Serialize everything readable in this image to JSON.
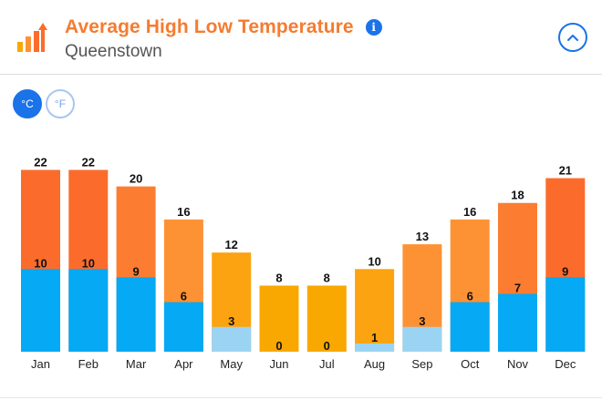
{
  "header": {
    "title": "Average High Low Temperature",
    "subtitle": "Queenstown",
    "info_icon": "info-icon",
    "collapse_icon": "chevron-up-icon",
    "logo_icon": "bar-chart-arrow-icon"
  },
  "units": {
    "celsius_label": "°C",
    "fahrenheit_label": "°F",
    "selected": "°C"
  },
  "colors": {
    "accent": "#1a73e8",
    "title": "#f47c30",
    "low_blue": "#05a9f4",
    "low_light_blue": "#9ad4f2",
    "high_scale": [
      "#f8a800",
      "#fca311",
      "#fd9235",
      "#fc7d32",
      "#fb6c2c"
    ]
  },
  "chart_data": {
    "type": "bar",
    "categories": [
      "Jan",
      "Feb",
      "Mar",
      "Apr",
      "May",
      "Jun",
      "Jul",
      "Aug",
      "Sep",
      "Oct",
      "Nov",
      "Dec"
    ],
    "series": [
      {
        "name": "",
        "values": [
          22,
          22,
          20,
          16,
          12,
          8,
          8,
          10,
          13,
          16,
          18,
          21
        ]
      },
      {
        "name": "",
        "values": [
          10,
          10,
          9,
          6,
          3,
          0,
          0,
          1,
          3,
          6,
          7,
          9
        ]
      }
    ],
    "unit": "°C",
    "ylim": [
      0,
      22
    ],
    "grid": false
  }
}
